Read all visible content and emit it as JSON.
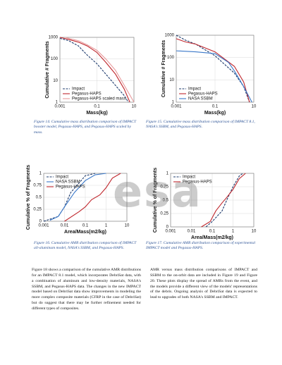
{
  "chart_data": [
    {
      "type": "line",
      "caption": "Figure 14. Cumulative mass distribution comparison of IMPACT booster model, Pegasus-HAPS, and Pegasus-HAPS scaled by mass.",
      "ylabel": "Cumulative # Fragments",
      "xlabel": "Mass(kg)",
      "xlog": true,
      "ylog": true,
      "grid": true,
      "legend": "lower left",
      "xlim": [
        0.001,
        10
      ],
      "xticks": [
        0.001,
        0.1,
        10
      ],
      "ylim": [
        1,
        1000
      ],
      "yticks": [
        1,
        10,
        100,
        1000
      ],
      "series": [
        {
          "name": "Impact",
          "color": "#1f3c6e",
          "linestyle": "dashed",
          "x": [
            0.001,
            0.003,
            0.01,
            0.03,
            0.1,
            0.3,
            1,
            3,
            5
          ],
          "values": [
            900,
            700,
            400,
            150,
            60,
            20,
            6,
            2,
            1
          ]
        },
        {
          "name": "Pegasus-HAPS",
          "color": "#c0272d",
          "linestyle": "solid",
          "x": [
            0.001,
            0.003,
            0.01,
            0.03,
            0.1,
            0.3,
            1,
            3,
            6
          ],
          "values": [
            1000,
            800,
            600,
            400,
            200,
            70,
            20,
            4,
            1
          ]
        },
        {
          "name": "Pegasus-HAPS scaled mass",
          "color": "#e89a9c",
          "linestyle": "solid",
          "x": [
            0.002,
            0.005,
            0.01,
            0.03,
            0.1,
            0.3,
            1,
            3,
            10
          ],
          "values": [
            1000,
            800,
            700,
            450,
            250,
            100,
            30,
            6,
            1
          ]
        }
      ]
    },
    {
      "type": "line",
      "caption": "Figure 15. Cumulative mass distribution comparison of IMPACT 8.1, NASA's SSBM, and Pegasus-HAPS.",
      "ylabel": "Cumulative # Fragments",
      "xlabel": "Mass(kg)",
      "xlog": true,
      "ylog": true,
      "grid": true,
      "legend": "lower left",
      "xlim": [
        0.001,
        10
      ],
      "xticks": [
        0.001,
        0.1,
        10
      ],
      "ylim": [
        1,
        1000
      ],
      "yticks": [
        1,
        10,
        100,
        1000
      ],
      "series": [
        {
          "name": "Impact",
          "color": "#1f3c6e",
          "linestyle": "dashed",
          "x": [
            0.001,
            0.003,
            0.01,
            0.1,
            1,
            3,
            6
          ],
          "values": [
            1000,
            600,
            400,
            120,
            20,
            5,
            1
          ]
        },
        {
          "name": "Pegasus-HAPS",
          "color": "#c0272d",
          "linestyle": "solid",
          "x": [
            0.001,
            0.003,
            0.01,
            0.1,
            1,
            3,
            6
          ],
          "values": [
            700,
            500,
            400,
            180,
            40,
            8,
            1
          ]
        },
        {
          "name": "NASA SSBM",
          "color": "#3a78c9",
          "linestyle": "solid",
          "x": [
            0.001,
            0.01,
            0.1,
            0.5,
            1,
            3,
            8
          ],
          "values": [
            200,
            180,
            150,
            60,
            25,
            5,
            1
          ]
        }
      ]
    },
    {
      "type": "line",
      "caption": "Figure 16. Cumulative AMR distribution comparison of IMPACT all-aluminum model, NASA's SSBM, and Pegasus-HAPS.",
      "ylabel": "Cumulative % of Fragments",
      "xlabel": "Area/Mass(m2/kg)",
      "xlog": true,
      "ylog": false,
      "grid": true,
      "legend": "upper left",
      "xlim": [
        0.001,
        10
      ],
      "xticks": [
        0.001,
        0.01,
        0.1,
        1,
        10
      ],
      "ylim": [
        0,
        1
      ],
      "yticks": [
        0,
        0.25,
        0.5,
        0.75,
        1
      ],
      "series": [
        {
          "name": "Impact",
          "color": "#1f3c6e",
          "linestyle": "dashed",
          "x": [
            0.001,
            0.005,
            0.01,
            0.02,
            0.05,
            0.1,
            0.3
          ],
          "values": [
            0,
            0.1,
            0.3,
            0.6,
            0.8,
            0.95,
            1
          ]
        },
        {
          "name": "NASA SSBM",
          "color": "#3a78c9",
          "linestyle": "solid",
          "x": [
            0.002,
            0.005,
            0.01,
            0.03,
            0.1,
            0.3,
            1
          ],
          "values": [
            0.02,
            0.1,
            0.3,
            0.6,
            0.85,
            0.97,
            1
          ]
        },
        {
          "name": "Pegasus-HAPS",
          "color": "#c0272d",
          "linestyle": "solid",
          "x": [
            0.01,
            0.05,
            0.1,
            0.2,
            0.5,
            1,
            2,
            5
          ],
          "values": [
            0,
            0.2,
            0.3,
            0.45,
            0.55,
            0.7,
            0.9,
            1
          ]
        }
      ]
    },
    {
      "type": "line",
      "caption": "Figure 17. Cumulative AMR distribution comparison of experimental IMPACT model and Pegasus-HAPS.",
      "ylabel": "Cumulative % of Fragments",
      "xlabel": "Area/Mass(m2/kg)",
      "xlog": true,
      "ylog": false,
      "grid": true,
      "legend": "upper left",
      "xlim": [
        0.001,
        10
      ],
      "xticks": [
        0.001,
        0.01,
        0.1,
        1,
        10
      ],
      "ylim": [
        0,
        1
      ],
      "yticks": [
        0,
        0.25,
        0.5,
        0.75,
        1
      ],
      "series": [
        {
          "name": "Impact",
          "color": "#1f3c6e",
          "linestyle": "dashed",
          "x": [
            0.05,
            0.1,
            0.3,
            0.5,
            1,
            2,
            3
          ],
          "values": [
            0,
            0.1,
            0.3,
            0.5,
            0.75,
            0.95,
            1
          ]
        },
        {
          "name": "Pegasus-HAPS",
          "color": "#c0272d",
          "linestyle": "solid",
          "x": [
            0.03,
            0.08,
            0.15,
            0.3,
            0.5,
            1,
            2,
            4
          ],
          "values": [
            0,
            0.1,
            0.3,
            0.45,
            0.55,
            0.7,
            0.9,
            1
          ]
        }
      ]
    }
  ],
  "watermark": "esa",
  "body": {
    "left": "Figure 18 shows a comparison of the cumulative AMR distributions for an IMPACT 8.1 model, which incorporates DebriSat data, with a combination of aluminum and low-density materials, NASA's SSBM, and Pegasus-HAPS data. The changes in the new IMPACT model based on DebriSat data show improvements in modeling the more complex composite materials (CFRP in the case of DebriSat) but do suggest that there may be further refinement needed for different types of composites.",
    "right": "AMR versus mass distribution comparisons of IMPACT and SSBM to the on-orbit data are included in Figure 19 and Figure 20. These plots display the spread of AMRs from the event, and the models provide a different view of the models' representations of the debris. Ongoing analysis of DebriSat data is expected to lead to upgrades of both NASA's SSBM and IMPACT."
  }
}
